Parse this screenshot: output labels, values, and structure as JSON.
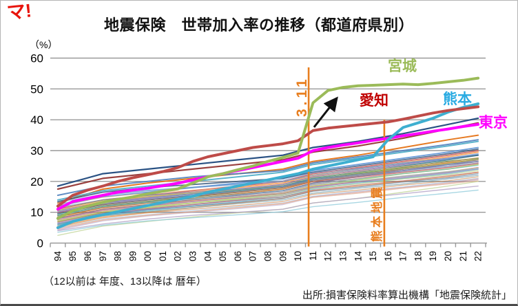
{
  "page": {
    "logo": "マ!",
    "title": "地震保険　世帯加入率の推移（都道府県別）",
    "footnote": "（12以前は 年度、13以降は 暦年）",
    "source": "出所:損害保険料率算出機構「地震保険統計」"
  },
  "chart_data": {
    "type": "line",
    "title": "地震保険 世帯加入率の推移（都道府県別）",
    "y_unit": "（%）",
    "ylim": [
      0,
      60
    ],
    "y_ticks": [
      0,
      10,
      20,
      30,
      40,
      50,
      60
    ],
    "grid": true,
    "legend_position": "inline-callouts",
    "x_labels": [
      "94",
      "95",
      "96",
      "97",
      "98",
      "99",
      "00",
      "01",
      "02",
      "03",
      "04",
      "05",
      "06",
      "07",
      "08",
      "09",
      "10",
      "11",
      "12",
      "13",
      "14",
      "15",
      "16",
      "17",
      "18",
      "19",
      "20",
      "21",
      "22"
    ],
    "series": [
      {
        "name": "宮城",
        "color": "#9BBB59",
        "width": 4,
        "values": [
          8,
          10.5,
          12,
          13.2,
          14.2,
          15,
          16,
          16.8,
          17.6,
          19.5,
          21.5,
          22.5,
          23.8,
          25,
          26.5,
          27.8,
          29.2,
          45.5,
          49.5,
          50.5,
          51,
          51.2,
          51.4,
          51.6,
          51.4,
          51.8,
          52.3,
          52.8,
          53.5
        ]
      },
      {
        "name": "愛知",
        "color": "#BE4B48",
        "width": 4,
        "values": [
          12,
          15.5,
          17.2,
          18.5,
          20,
          21.2,
          22.2,
          23.2,
          24.5,
          26.5,
          28,
          29,
          30,
          31,
          31.6,
          32.2,
          33.2,
          36.5,
          37.3,
          37.8,
          38.3,
          38.8,
          39.3,
          40.2,
          41.2,
          42.2,
          43,
          43.6,
          44.2
        ]
      },
      {
        "name": "熊本",
        "color": "#3EAFD0",
        "width": 4,
        "values": [
          5,
          7,
          8.2,
          9.2,
          10.2,
          11.2,
          12.2,
          13.2,
          14.2,
          15.2,
          16.5,
          17.5,
          18.5,
          19.5,
          20.5,
          21.5,
          22.5,
          24,
          25,
          26,
          27,
          28,
          33.5,
          37.5,
          39,
          40.5,
          42.5,
          44,
          45.2
        ]
      },
      {
        "name": "東京",
        "color": "#FF00FF",
        "width": 4,
        "values": [
          11,
          13.5,
          14.5,
          15.5,
          16.5,
          17.2,
          17.8,
          18.6,
          19.4,
          20.5,
          21.5,
          22.5,
          23.5,
          24.5,
          25.5,
          26.5,
          27.5,
          30,
          31,
          31.8,
          32.5,
          33.3,
          34,
          34.8,
          35.5,
          36.3,
          37,
          37.8,
          38.5
        ]
      }
    ],
    "knot_indices": [
      0,
      3,
      6,
      9,
      12,
      15,
      17,
      20,
      23,
      26,
      28
    ],
    "background_series": [
      {
        "color": "#1F497D",
        "width": 2.2,
        "opacity": 0.95,
        "knot_values": [
          18.5,
          22.5,
          24,
          25.5,
          27,
          28.5,
          31,
          33,
          35.5,
          38.5,
          40.5
        ]
      },
      {
        "color": "#953735",
        "width": 2.2,
        "opacity": 0.95,
        "knot_values": [
          17.5,
          21,
          22.5,
          24,
          25.5,
          27,
          29.5,
          31.5,
          34,
          37,
          39
        ]
      },
      {
        "color": "#E36C0A",
        "width": 2,
        "opacity": 0.9,
        "knot_values": [
          13,
          17.5,
          19.5,
          21,
          22.5,
          24,
          26.5,
          28.5,
          31,
          33.5,
          35
        ]
      },
      {
        "color": "#4BACC6",
        "width": 2,
        "opacity": 0.9,
        "knot_values": [
          14,
          17,
          18.5,
          20,
          21.5,
          23,
          25.5,
          27.5,
          29.5,
          31.5,
          33
        ]
      },
      {
        "color": "#4F81BD",
        "width": 2,
        "opacity": 0.9,
        "knot_values": [
          15.5,
          18.5,
          20,
          21.5,
          22.5,
          23.5,
          26,
          28,
          30,
          32,
          33.5
        ]
      },
      {
        "color": "#548DD4",
        "width": 1.8,
        "opacity": 0.85,
        "knot_values": [
          12,
          15,
          16.5,
          18,
          19.5,
          21,
          23.5,
          25.5,
          27.5,
          29.5,
          31
        ]
      },
      {
        "color": "#8064A2",
        "width": 1.8,
        "opacity": 0.8,
        "knot_values": [
          10,
          13,
          14.5,
          16,
          17.5,
          19,
          21.5,
          23.5,
          25.5,
          27.5,
          28.5
        ]
      },
      {
        "color": "#C0504D",
        "width": 1.8,
        "opacity": 0.8,
        "knot_values": [
          11,
          14,
          15.5,
          17,
          18.5,
          20,
          22.5,
          24.5,
          26.5,
          28.5,
          30
        ]
      },
      {
        "color": "#F79646",
        "width": 1.8,
        "opacity": 0.85,
        "knot_values": [
          10.5,
          13.5,
          15,
          16.5,
          18,
          19.5,
          22,
          24,
          26,
          28,
          29.5
        ]
      },
      {
        "color": "#276A7C",
        "width": 1.8,
        "opacity": 0.8,
        "knot_values": [
          9.5,
          12.5,
          14,
          15.5,
          17,
          18.5,
          21,
          23,
          25,
          27,
          28.5
        ]
      },
      {
        "color": "#5F7530",
        "width": 1.8,
        "opacity": 0.8,
        "knot_values": [
          9,
          12,
          13.5,
          15,
          16.5,
          18,
          20.5,
          22.5,
          24.5,
          26.5,
          27.5
        ]
      },
      {
        "color": "#2C4D75",
        "width": 1.8,
        "opacity": 0.8,
        "knot_values": [
          13.5,
          16.5,
          18,
          19,
          20,
          21,
          23,
          25,
          27,
          29,
          30.5
        ]
      },
      {
        "color": "#B65708",
        "width": 1.6,
        "opacity": 0.8,
        "knot_values": [
          8.5,
          11.5,
          13,
          14.5,
          16,
          17.5,
          20,
          22,
          24,
          26,
          27
        ]
      },
      {
        "color": "#5C4776",
        "width": 1.6,
        "opacity": 0.75,
        "knot_values": [
          8,
          11,
          12.5,
          14,
          15.5,
          17,
          19.5,
          21.5,
          23.5,
          25.5,
          26.5
        ]
      },
      {
        "color": "#729ACA",
        "width": 1.6,
        "opacity": 0.75,
        "knot_values": [
          12.5,
          15.5,
          17,
          18,
          19,
          20,
          22,
          24,
          26,
          27.5,
          29
        ]
      },
      {
        "color": "#CD7371",
        "width": 1.6,
        "opacity": 0.7,
        "knot_values": [
          7.5,
          10.5,
          12,
          13.5,
          15,
          16.5,
          19,
          21,
          23,
          24.5,
          26
        ]
      },
      {
        "color": "#A5C249",
        "width": 1.6,
        "opacity": 0.75,
        "knot_values": [
          7,
          10,
          11.5,
          13,
          14.5,
          16,
          18.5,
          20.5,
          22.5,
          24,
          25.5
        ]
      },
      {
        "color": "#9683B5",
        "width": 1.6,
        "opacity": 0.7,
        "knot_values": [
          6.5,
          9.5,
          11,
          12.5,
          14,
          15.5,
          18,
          20,
          21.5,
          23,
          24.5
        ]
      },
      {
        "color": "#6FBDD1",
        "width": 1.6,
        "opacity": 0.7,
        "knot_values": [
          6,
          9,
          10.5,
          12,
          13.5,
          15,
          17.5,
          19.5,
          21,
          22.5,
          24
        ]
      },
      {
        "color": "#F9AC6C",
        "width": 1.6,
        "opacity": 0.75,
        "knot_values": [
          5.5,
          8.5,
          10,
          11.5,
          13,
          14.5,
          17,
          18.5,
          20,
          21.5,
          23
        ]
      },
      {
        "color": "#7A8DB8",
        "width": 1.6,
        "opacity": 0.7,
        "knot_values": [
          11.5,
          14,
          15.5,
          16.5,
          17.5,
          18.5,
          20.5,
          22,
          23.5,
          25,
          26.5
        ]
      },
      {
        "color": "#C0504D",
        "width": 1.4,
        "opacity": 0.5,
        "knot_values": [
          9.8,
          12.5,
          14,
          15.2,
          16.5,
          18,
          20,
          21.5,
          23,
          24.5,
          25.8
        ]
      },
      {
        "color": "#4F81BD",
        "width": 1.4,
        "opacity": 0.5,
        "knot_values": [
          10.5,
          13.2,
          14.8,
          16,
          17.2,
          18.5,
          20.8,
          22.3,
          24,
          25.5,
          27
        ]
      },
      {
        "color": "#4BACC6",
        "width": 1.4,
        "opacity": 0.5,
        "knot_values": [
          8.8,
          11.8,
          13.2,
          14.5,
          15.8,
          17,
          19.2,
          20.8,
          22.5,
          24,
          25.2
        ]
      },
      {
        "color": "#F79646",
        "width": 1.4,
        "opacity": 0.5,
        "knot_values": [
          8.2,
          11,
          12.5,
          13.8,
          15,
          16.2,
          18.5,
          20,
          21.8,
          23.2,
          24.5
        ]
      },
      {
        "color": "#8064A2",
        "width": 1.4,
        "opacity": 0.5,
        "knot_values": [
          7.8,
          10.8,
          12.2,
          13.5,
          14.8,
          16,
          18.2,
          19.8,
          21.2,
          22.8,
          24
        ]
      },
      {
        "color": "#9BBB59",
        "width": 1.4,
        "opacity": 0.5,
        "knot_values": [
          7.2,
          10.2,
          11.8,
          13,
          14.2,
          15.5,
          17.8,
          19.2,
          20.8,
          22.2,
          23.5
        ]
      },
      {
        "color": "#953735",
        "width": 1.4,
        "opacity": 0.5,
        "knot_values": [
          6.8,
          9.8,
          11.2,
          12.5,
          13.8,
          15,
          17.2,
          18.8,
          20.2,
          21.8,
          23
        ]
      },
      {
        "color": "#1F497D",
        "width": 1.4,
        "opacity": 0.5,
        "knot_values": [
          6.2,
          9.2,
          10.8,
          12,
          13.2,
          14.5,
          16.8,
          18.2,
          19.8,
          21.2,
          22.5
        ]
      },
      {
        "color": "#276A7C",
        "width": 1.4,
        "opacity": 0.45,
        "knot_values": [
          5.8,
          8.8,
          10.2,
          11.5,
          12.8,
          14,
          16.2,
          17.8,
          19.2,
          20.8,
          22
        ]
      },
      {
        "color": "#B65708",
        "width": 1.4,
        "opacity": 0.45,
        "knot_values": [
          5.2,
          8.2,
          9.8,
          11,
          12.2,
          13.5,
          15.8,
          17.2,
          18.8,
          20.2,
          21.5
        ]
      },
      {
        "color": "#729ACA",
        "width": 1.4,
        "opacity": 0.45,
        "knot_values": [
          4.8,
          7.8,
          9.2,
          10.5,
          11.8,
          13,
          15.2,
          16.8,
          18.2,
          19.8,
          21
        ]
      },
      {
        "color": "#CD7371",
        "width": 1.4,
        "opacity": 0.45,
        "knot_values": [
          4.5,
          7.5,
          9,
          10.2,
          11.5,
          12.8,
          15,
          16.5,
          18,
          19.5,
          20.8
        ]
      },
      {
        "color": "#9683B5",
        "width": 1.4,
        "opacity": 0.45,
        "knot_values": [
          4.2,
          7.2,
          8.8,
          10,
          11.2,
          12.5,
          14.8,
          16.2,
          17.8,
          19.2,
          20.5
        ]
      },
      {
        "color": "#C3D69B",
        "width": 1.4,
        "opacity": 0.8,
        "knot_values": [
          2.5,
          5.5,
          7,
          8.5,
          9.8,
          11,
          13,
          14.5,
          16.5,
          18.5,
          20
        ]
      },
      {
        "color": "#92CDDC",
        "width": 1.4,
        "opacity": 0.8,
        "knot_values": [
          3.5,
          5.8,
          7.2,
          8.2,
          9.2,
          10.2,
          11.8,
          13.2,
          14.8,
          16.2,
          17.2
        ]
      },
      {
        "color": "#B3A2C7",
        "width": 1.4,
        "opacity": 0.8,
        "knot_values": [
          4,
          6.2,
          7.8,
          9,
          10,
          11,
          13,
          14.5,
          16,
          17.5,
          18.5
        ]
      },
      {
        "color": "#FAC090",
        "width": 1.4,
        "opacity": 0.6,
        "knot_values": [
          5,
          7.5,
          9,
          10.2,
          11.5,
          12.8,
          14.8,
          16.2,
          17.8,
          19.2,
          20.2
        ]
      },
      {
        "color": "#6FBDD1",
        "width": 1.4,
        "opacity": 0.45,
        "knot_values": [
          9.2,
          11.8,
          13.2,
          14.2,
          15.2,
          16.5,
          18.8,
          20.2,
          21.8,
          23.2,
          24.2
        ]
      },
      {
        "color": "#7A8DB8",
        "width": 1.4,
        "opacity": 0.45,
        "knot_values": [
          10.2,
          12.8,
          14.2,
          15.5,
          16.8,
          18.2,
          20.2,
          21.8,
          23.2,
          24.8,
          26
        ]
      },
      {
        "color": "#A5C249",
        "width": 1.4,
        "opacity": 0.45,
        "knot_values": [
          11.2,
          13.8,
          15.2,
          16.2,
          17.2,
          18.8,
          21.2,
          22.8,
          24.2,
          25.8,
          27.2
        ]
      },
      {
        "color": "#F9AC6C",
        "width": 1.4,
        "opacity": 0.45,
        "knot_values": [
          12.2,
          14.8,
          16.2,
          17.2,
          18.2,
          19.5,
          21.8,
          23.2,
          24.8,
          26.2,
          27.8
        ]
      },
      {
        "color": "#548DD4",
        "width": 1.4,
        "opacity": 0.45,
        "knot_values": [
          13.2,
          15.8,
          17.2,
          18.2,
          19.2,
          20.5,
          22.8,
          24.2,
          25.8,
          27.2,
          28.8
        ]
      }
    ],
    "events": [
      {
        "label": "3.11",
        "color": "#E87E1E",
        "x_index": 16.71,
        "top_value": 57
      },
      {
        "label": "熊本地震",
        "color": "#E87E1E",
        "x_index": 21.75,
        "top_value": 40
      }
    ],
    "callouts": [
      {
        "label": "宮城",
        "color": "#9BBB59"
      },
      {
        "label": "愛知",
        "color": "#C00000"
      },
      {
        "label": "熊本",
        "color": "#29ABE2"
      },
      {
        "label": "東京",
        "color": "#FF00FF"
      }
    ],
    "arrow": {
      "color": "#111111",
      "x1_index": 17.07,
      "y1_value": 37.6,
      "x2_index": 18.59,
      "y2_value": 47.0
    },
    "grid_color": "#999999",
    "axis_color": "#999999"
  }
}
